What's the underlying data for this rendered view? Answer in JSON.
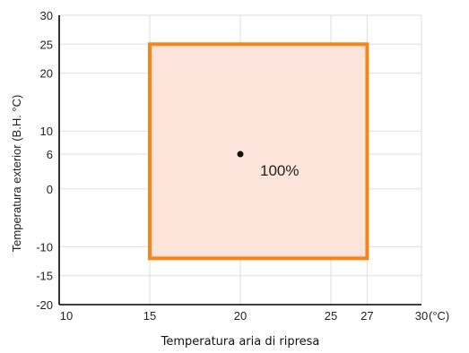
{
  "chart_data": {
    "type": "area",
    "xlabel": "Temperatura aria di ripresa",
    "ylabel": "Temperatura exterior (B.H. °C)",
    "x_unit": "(°C)",
    "xlim": [
      10,
      30
    ],
    "ylim": [
      -20,
      30
    ],
    "x_ticks": [
      10,
      15,
      20,
      25,
      27,
      30
    ],
    "y_ticks": [
      -20,
      -15,
      -10,
      0,
      6,
      10,
      20,
      25,
      30
    ],
    "grid": true,
    "region": {
      "x_min": 15,
      "x_max": 27,
      "y_min": -12,
      "y_max": 25,
      "border_color": "#fb8417",
      "fill_color": "#fde4da"
    },
    "point": {
      "x": 20,
      "y": 6,
      "label": "100%"
    }
  }
}
